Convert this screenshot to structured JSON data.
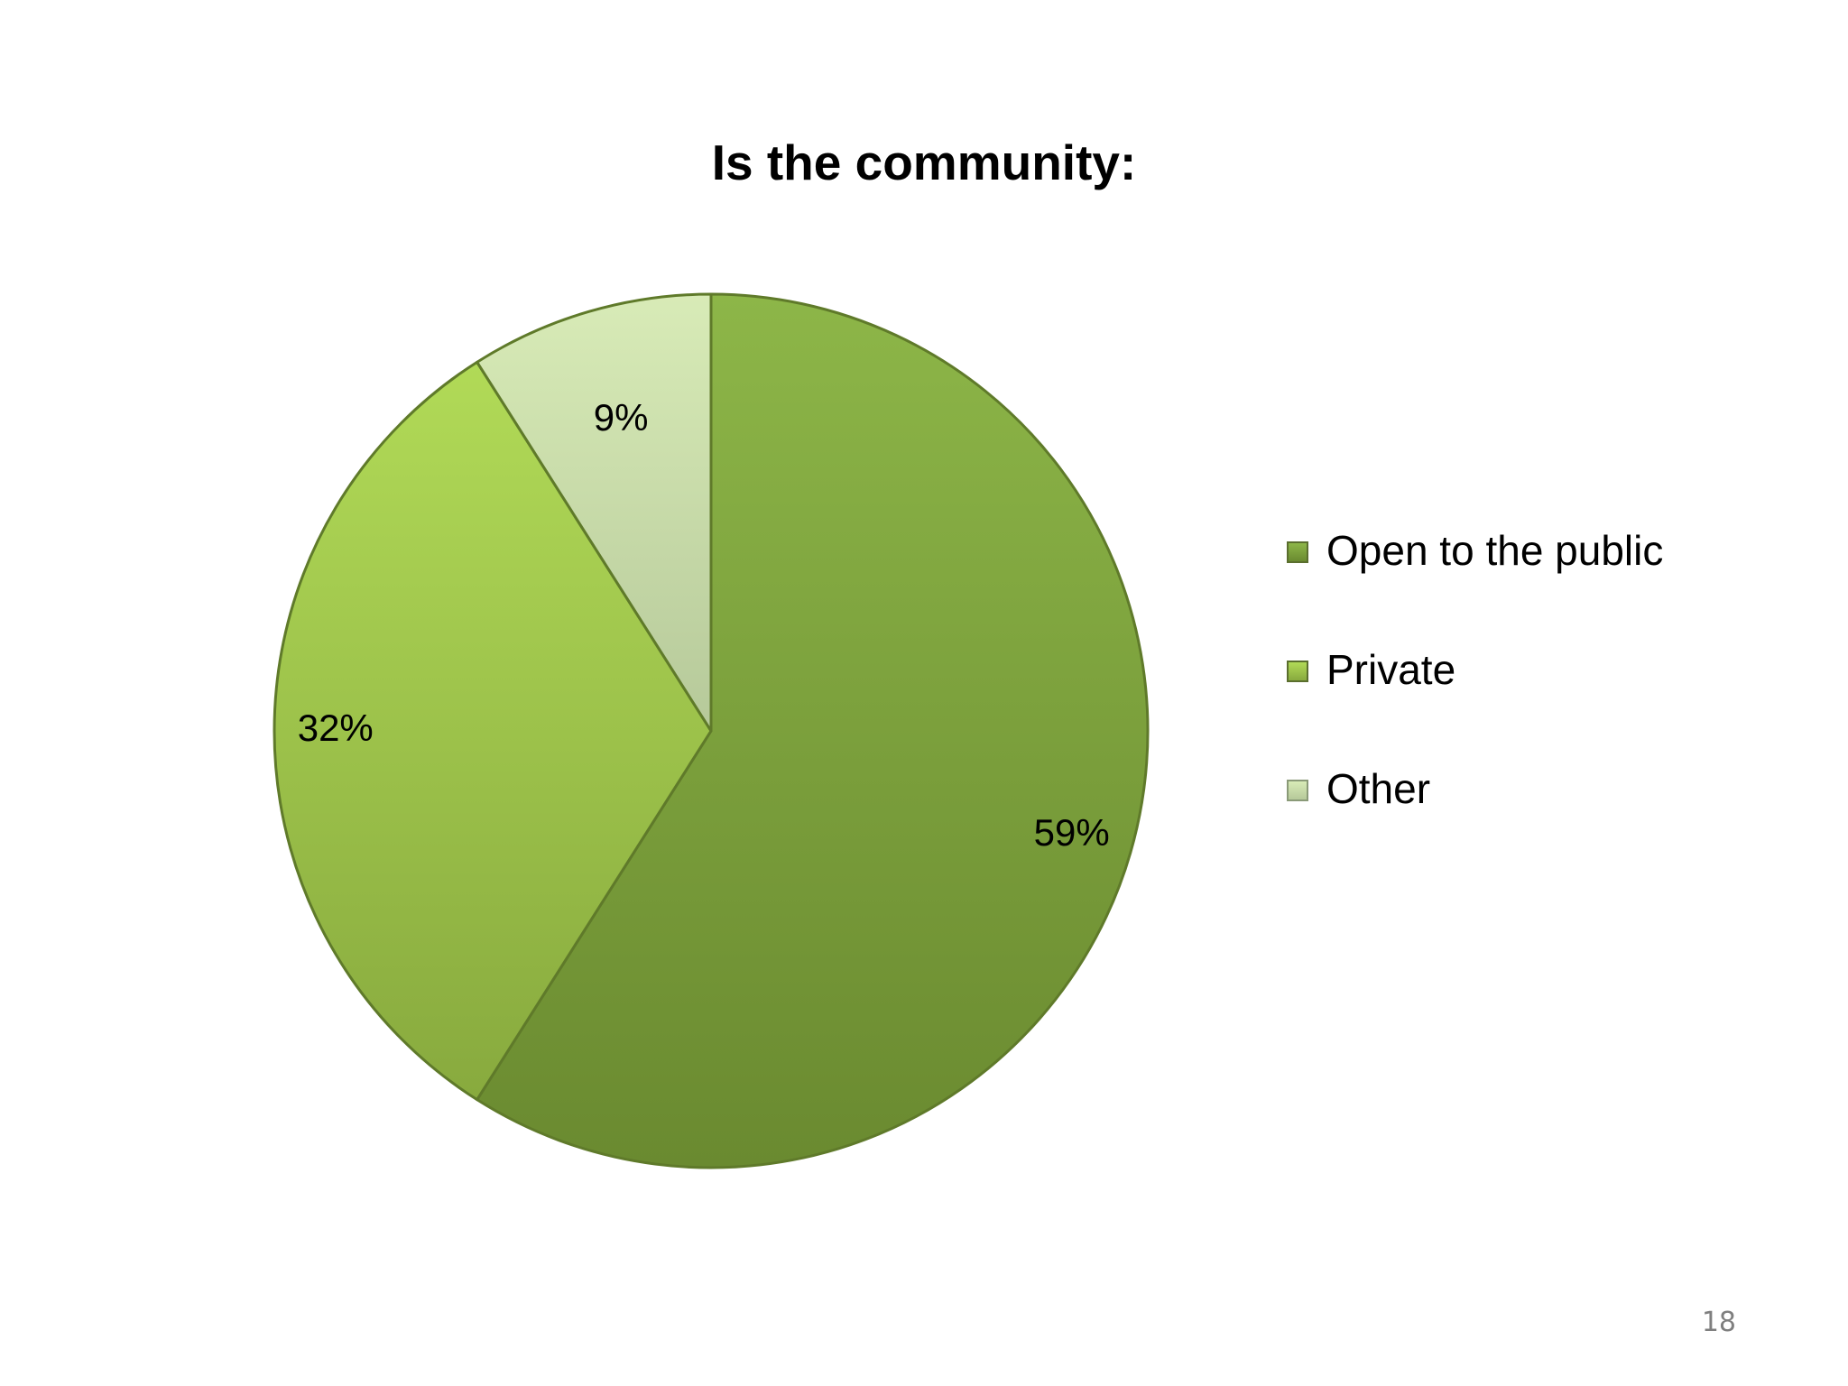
{
  "chart_data": {
    "type": "pie",
    "title": "Is the community:",
    "categories": [
      "Open to the public",
      "Private",
      "Other"
    ],
    "values": [
      59,
      32,
      9
    ],
    "data_labels": [
      "59%",
      "32%",
      "9%"
    ],
    "legend_position": "right",
    "colors": [
      "#779a3b",
      "#a3c74f",
      "#c9dca9"
    ]
  },
  "page": {
    "number": "18"
  }
}
